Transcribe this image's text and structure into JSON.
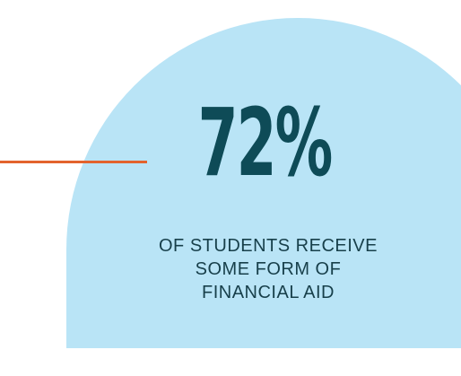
{
  "stat": {
    "value": "72%",
    "caption_lines": [
      "OF STUDENTS RECEIVE",
      "SOME FORM OF",
      "FINANCIAL AID"
    ]
  },
  "colors": {
    "background": "#ffffff",
    "arch_fill": "#b9e4f6",
    "connector_line": "#e3632d",
    "stat_value": "#0e4b57",
    "caption_text": "#173f4a"
  }
}
